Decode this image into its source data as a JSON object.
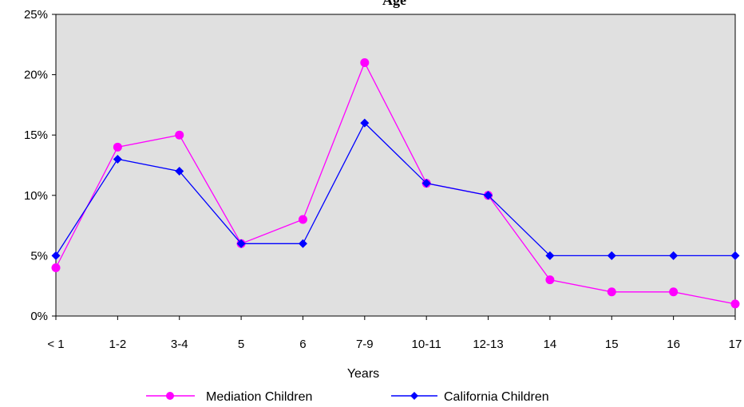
{
  "chart_data": {
    "type": "line",
    "title": "Age",
    "xlabel": "Years",
    "ylabel": "",
    "categories": [
      "< 1",
      "1-2",
      "3-4",
      "5",
      "6",
      "7-9",
      "10-11",
      "12-13",
      "14",
      "15",
      "16",
      "17"
    ],
    "y_ticks": [
      "0%",
      "5%",
      "10%",
      "15%",
      "20%",
      "25%"
    ],
    "ylim": [
      0,
      25
    ],
    "grid": false,
    "legend_position": "bottom",
    "background_color": "#e0e0e0",
    "series": [
      {
        "name": "Mediation Children",
        "color": "#ff00ff",
        "marker": "circle",
        "values": [
          4,
          14,
          15,
          6,
          8,
          21,
          11,
          10,
          3,
          2,
          2,
          1
        ]
      },
      {
        "name": "California Children",
        "color": "#0000ff",
        "marker": "diamond",
        "values": [
          5,
          13,
          12,
          6,
          6,
          16,
          11,
          10,
          5,
          5,
          5,
          5
        ]
      }
    ]
  }
}
